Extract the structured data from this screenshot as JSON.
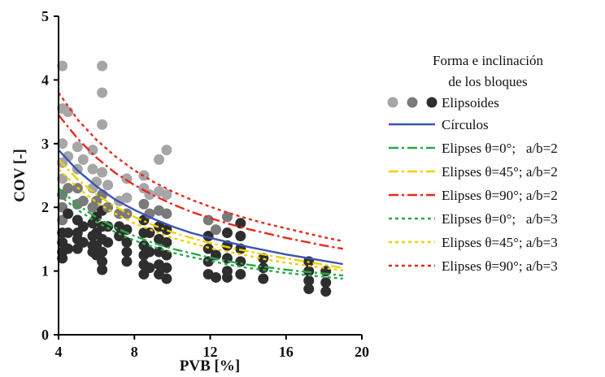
{
  "chart_data": {
    "type": "scatter",
    "xlabel": "PVB [%]",
    "ylabel": "COV [-]",
    "xlim": [
      4,
      20
    ],
    "ylim": [
      0,
      5
    ],
    "x_ticks": [
      "4",
      "8",
      "12",
      "16",
      "20"
    ],
    "y_ticks": [
      "0",
      "1",
      "2",
      "3",
      "4",
      "5"
    ],
    "grid": false,
    "legend_position": "right",
    "legend_title_lines": [
      "Forma e inclinación",
      "de los bloques"
    ],
    "scatter_series": {
      "name": "Elipsoides",
      "colors": {
        "light": "#a6a6a6",
        "mid": "#7a7a7a",
        "dark": "#2e2e2e"
      },
      "points": [
        {
          "x": 4.2,
          "y": 4.22,
          "shade": "light"
        },
        {
          "x": 4.2,
          "y": 3.55,
          "shade": "light"
        },
        {
          "x": 4.2,
          "y": 3.0,
          "shade": "light"
        },
        {
          "x": 4.2,
          "y": 2.7,
          "shade": "light"
        },
        {
          "x": 4.2,
          "y": 2.45,
          "shade": "light"
        },
        {
          "x": 4.2,
          "y": 2.2,
          "shade": "mid"
        },
        {
          "x": 4.2,
          "y": 2.0,
          "shade": "mid"
        },
        {
          "x": 4.2,
          "y": 1.8,
          "shade": "mid"
        },
        {
          "x": 4.2,
          "y": 1.6,
          "shade": "dark"
        },
        {
          "x": 4.2,
          "y": 1.45,
          "shade": "dark"
        },
        {
          "x": 4.2,
          "y": 1.3,
          "shade": "dark"
        },
        {
          "x": 4.2,
          "y": 1.2,
          "shade": "dark"
        },
        {
          "x": 4.5,
          "y": 3.5,
          "shade": "light"
        },
        {
          "x": 4.5,
          "y": 2.8,
          "shade": "light"
        },
        {
          "x": 4.5,
          "y": 2.3,
          "shade": "mid"
        },
        {
          "x": 4.5,
          "y": 1.9,
          "shade": "dark"
        },
        {
          "x": 4.5,
          "y": 1.6,
          "shade": "dark"
        },
        {
          "x": 4.5,
          "y": 1.35,
          "shade": "dark"
        },
        {
          "x": 5.0,
          "y": 2.95,
          "shade": "light"
        },
        {
          "x": 5.0,
          "y": 2.6,
          "shade": "light"
        },
        {
          "x": 5.0,
          "y": 2.3,
          "shade": "mid"
        },
        {
          "x": 5.0,
          "y": 2.05,
          "shade": "mid"
        },
        {
          "x": 5.0,
          "y": 1.8,
          "shade": "dark"
        },
        {
          "x": 5.0,
          "y": 1.6,
          "shade": "dark"
        },
        {
          "x": 5.0,
          "y": 1.5,
          "shade": "dark"
        },
        {
          "x": 5.0,
          "y": 1.35,
          "shade": "dark"
        },
        {
          "x": 5.3,
          "y": 2.75,
          "shade": "light"
        },
        {
          "x": 5.3,
          "y": 2.1,
          "shade": "mid"
        },
        {
          "x": 5.3,
          "y": 1.7,
          "shade": "dark"
        },
        {
          "x": 5.3,
          "y": 1.45,
          "shade": "dark"
        },
        {
          "x": 5.8,
          "y": 2.9,
          "shade": "light"
        },
        {
          "x": 5.8,
          "y": 2.6,
          "shade": "light"
        },
        {
          "x": 5.8,
          "y": 2.3,
          "shade": "light"
        },
        {
          "x": 5.8,
          "y": 2.0,
          "shade": "mid"
        },
        {
          "x": 5.8,
          "y": 1.75,
          "shade": "dark"
        },
        {
          "x": 5.8,
          "y": 1.55,
          "shade": "dark"
        },
        {
          "x": 5.8,
          "y": 1.4,
          "shade": "dark"
        },
        {
          "x": 5.8,
          "y": 1.3,
          "shade": "dark"
        },
        {
          "x": 6.0,
          "y": 2.4,
          "shade": "light"
        },
        {
          "x": 6.0,
          "y": 2.1,
          "shade": "mid"
        },
        {
          "x": 6.0,
          "y": 1.85,
          "shade": "dark"
        },
        {
          "x": 6.0,
          "y": 1.6,
          "shade": "dark"
        },
        {
          "x": 6.0,
          "y": 1.4,
          "shade": "dark"
        },
        {
          "x": 6.0,
          "y": 1.25,
          "shade": "dark"
        },
        {
          "x": 6.3,
          "y": 4.22,
          "shade": "light"
        },
        {
          "x": 6.3,
          "y": 3.8,
          "shade": "light"
        },
        {
          "x": 6.3,
          "y": 3.3,
          "shade": "light"
        },
        {
          "x": 6.3,
          "y": 2.55,
          "shade": "light"
        },
        {
          "x": 6.3,
          "y": 2.2,
          "shade": "mid"
        },
        {
          "x": 6.3,
          "y": 1.95,
          "shade": "dark"
        },
        {
          "x": 6.3,
          "y": 1.7,
          "shade": "dark"
        },
        {
          "x": 6.3,
          "y": 1.5,
          "shade": "dark"
        },
        {
          "x": 6.3,
          "y": 1.3,
          "shade": "dark"
        },
        {
          "x": 6.3,
          "y": 1.15,
          "shade": "dark"
        },
        {
          "x": 6.3,
          "y": 1.02,
          "shade": "dark"
        },
        {
          "x": 6.6,
          "y": 2.35,
          "shade": "light"
        },
        {
          "x": 6.6,
          "y": 2.0,
          "shade": "mid"
        },
        {
          "x": 6.6,
          "y": 1.7,
          "shade": "dark"
        },
        {
          "x": 6.6,
          "y": 1.45,
          "shade": "dark"
        },
        {
          "x": 7.2,
          "y": 2.1,
          "shade": "light"
        },
        {
          "x": 7.2,
          "y": 1.9,
          "shade": "mid"
        },
        {
          "x": 7.2,
          "y": 1.7,
          "shade": "dark"
        },
        {
          "x": 7.2,
          "y": 1.55,
          "shade": "dark"
        },
        {
          "x": 7.6,
          "y": 2.45,
          "shade": "light"
        },
        {
          "x": 7.6,
          "y": 2.15,
          "shade": "light"
        },
        {
          "x": 7.6,
          "y": 1.9,
          "shade": "mid"
        },
        {
          "x": 7.6,
          "y": 1.65,
          "shade": "dark"
        },
        {
          "x": 7.6,
          "y": 1.45,
          "shade": "dark"
        },
        {
          "x": 7.6,
          "y": 1.3,
          "shade": "dark"
        },
        {
          "x": 7.6,
          "y": 1.15,
          "shade": "dark"
        },
        {
          "x": 8.5,
          "y": 2.5,
          "shade": "light"
        },
        {
          "x": 8.5,
          "y": 2.3,
          "shade": "light"
        },
        {
          "x": 8.5,
          "y": 2.05,
          "shade": "mid"
        },
        {
          "x": 8.5,
          "y": 1.8,
          "shade": "dark"
        },
        {
          "x": 8.5,
          "y": 1.6,
          "shade": "dark"
        },
        {
          "x": 8.5,
          "y": 1.4,
          "shade": "dark"
        },
        {
          "x": 8.5,
          "y": 1.25,
          "shade": "dark"
        },
        {
          "x": 8.5,
          "y": 1.1,
          "shade": "dark"
        },
        {
          "x": 8.5,
          "y": 0.95,
          "shade": "dark"
        },
        {
          "x": 8.8,
          "y": 2.2,
          "shade": "light"
        },
        {
          "x": 8.8,
          "y": 1.9,
          "shade": "mid"
        },
        {
          "x": 8.8,
          "y": 1.6,
          "shade": "dark"
        },
        {
          "x": 8.8,
          "y": 1.3,
          "shade": "dark"
        },
        {
          "x": 8.8,
          "y": 1.05,
          "shade": "dark"
        },
        {
          "x": 9.3,
          "y": 2.75,
          "shade": "light"
        },
        {
          "x": 9.3,
          "y": 2.25,
          "shade": "light"
        },
        {
          "x": 9.3,
          "y": 1.95,
          "shade": "mid"
        },
        {
          "x": 9.3,
          "y": 1.7,
          "shade": "dark"
        },
        {
          "x": 9.3,
          "y": 1.5,
          "shade": "dark"
        },
        {
          "x": 9.3,
          "y": 1.3,
          "shade": "dark"
        },
        {
          "x": 9.3,
          "y": 1.1,
          "shade": "dark"
        },
        {
          "x": 9.3,
          "y": 0.95,
          "shade": "dark"
        },
        {
          "x": 9.7,
          "y": 2.9,
          "shade": "light"
        },
        {
          "x": 9.7,
          "y": 2.2,
          "shade": "light"
        },
        {
          "x": 9.7,
          "y": 1.9,
          "shade": "mid"
        },
        {
          "x": 9.7,
          "y": 1.65,
          "shade": "dark"
        },
        {
          "x": 9.7,
          "y": 1.45,
          "shade": "dark"
        },
        {
          "x": 9.7,
          "y": 1.25,
          "shade": "dark"
        },
        {
          "x": 9.7,
          "y": 1.05,
          "shade": "dark"
        },
        {
          "x": 9.7,
          "y": 0.88,
          "shade": "dark"
        },
        {
          "x": 11.9,
          "y": 1.8,
          "shade": "mid"
        },
        {
          "x": 11.9,
          "y": 1.55,
          "shade": "dark"
        },
        {
          "x": 11.9,
          "y": 1.35,
          "shade": "dark"
        },
        {
          "x": 11.9,
          "y": 1.15,
          "shade": "dark"
        },
        {
          "x": 11.9,
          "y": 0.95,
          "shade": "dark"
        },
        {
          "x": 12.3,
          "y": 1.65,
          "shade": "mid"
        },
        {
          "x": 12.3,
          "y": 1.25,
          "shade": "dark"
        },
        {
          "x": 12.3,
          "y": 0.9,
          "shade": "dark"
        },
        {
          "x": 12.9,
          "y": 1.85,
          "shade": "mid"
        },
        {
          "x": 12.9,
          "y": 1.6,
          "shade": "dark"
        },
        {
          "x": 12.9,
          "y": 1.4,
          "shade": "dark"
        },
        {
          "x": 12.9,
          "y": 1.2,
          "shade": "dark"
        },
        {
          "x": 12.9,
          "y": 1.0,
          "shade": "dark"
        },
        {
          "x": 12.9,
          "y": 0.9,
          "shade": "dark"
        },
        {
          "x": 13.6,
          "y": 1.75,
          "shade": "dark"
        },
        {
          "x": 13.6,
          "y": 1.55,
          "shade": "dark"
        },
        {
          "x": 13.6,
          "y": 1.35,
          "shade": "dark"
        },
        {
          "x": 13.6,
          "y": 1.15,
          "shade": "dark"
        },
        {
          "x": 13.6,
          "y": 0.95,
          "shade": "dark"
        },
        {
          "x": 14.8,
          "y": 1.2,
          "shade": "dark"
        },
        {
          "x": 14.8,
          "y": 1.05,
          "shade": "dark"
        },
        {
          "x": 14.8,
          "y": 0.88,
          "shade": "dark"
        },
        {
          "x": 17.2,
          "y": 1.15,
          "shade": "dark"
        },
        {
          "x": 17.2,
          "y": 1.0,
          "shade": "dark"
        },
        {
          "x": 17.2,
          "y": 0.85,
          "shade": "dark"
        },
        {
          "x": 17.2,
          "y": 0.72,
          "shade": "dark"
        },
        {
          "x": 18.1,
          "y": 1.0,
          "shade": "dark"
        },
        {
          "x": 18.1,
          "y": 0.82,
          "shade": "dark"
        },
        {
          "x": 18.1,
          "y": 0.68,
          "shade": "dark"
        }
      ]
    },
    "series": [
      {
        "name": "Círculos",
        "color": "#3a55b4",
        "dash": "solid",
        "x": [
          4,
          5,
          6,
          7,
          8,
          9,
          10,
          11,
          12,
          13,
          14,
          15,
          16,
          17,
          18,
          19
        ],
        "y": [
          2.9,
          2.58,
          2.33,
          2.12,
          1.96,
          1.82,
          1.7,
          1.6,
          1.52,
          1.45,
          1.38,
          1.32,
          1.26,
          1.21,
          1.16,
          1.11
        ]
      },
      {
        "name": "Elipses θ=0°;   a/b=2",
        "color": "#2aa84a",
        "dash": "dashdot",
        "x": [
          4,
          5,
          6,
          7,
          8,
          9,
          10,
          11,
          12,
          13,
          14,
          15,
          16,
          17,
          18,
          19
        ],
        "y": [
          2.3,
          2.04,
          1.84,
          1.68,
          1.55,
          1.44,
          1.35,
          1.28,
          1.21,
          1.15,
          1.1,
          1.06,
          1.02,
          0.99,
          0.96,
          0.93
        ]
      },
      {
        "name": "Elipses θ=45°; a/b=2",
        "color": "#f0d000",
        "dash": "dashdot",
        "x": [
          4,
          5,
          6,
          7,
          8,
          9,
          10,
          11,
          12,
          13,
          14,
          15,
          16,
          17,
          18,
          19
        ],
        "y": [
          2.75,
          2.44,
          2.2,
          2.01,
          1.85,
          1.72,
          1.61,
          1.52,
          1.44,
          1.37,
          1.31,
          1.25,
          1.2,
          1.15,
          1.1,
          1.05
        ]
      },
      {
        "name": "Elipses θ=90°; a/b=2",
        "color": "#e8281c",
        "dash": "dashdot",
        "x": [
          4,
          5,
          6,
          7,
          8,
          9,
          10,
          11,
          12,
          13,
          14,
          15,
          16,
          17,
          18,
          19
        ],
        "y": [
          3.45,
          3.08,
          2.78,
          2.54,
          2.35,
          2.19,
          2.05,
          1.93,
          1.83,
          1.74,
          1.66,
          1.59,
          1.52,
          1.46,
          1.4,
          1.35
        ]
      },
      {
        "name": "Elipses θ=0°;   a/b=3",
        "color": "#2aa84a",
        "dash": "dotted",
        "x": [
          4,
          5,
          6,
          7,
          8,
          9,
          10,
          11,
          12,
          13,
          14,
          15,
          16,
          17,
          18,
          19
        ],
        "y": [
          2.2,
          1.96,
          1.77,
          1.61,
          1.48,
          1.38,
          1.29,
          1.22,
          1.16,
          1.1,
          1.05,
          1.01,
          0.97,
          0.94,
          0.91,
          0.88
        ]
      },
      {
        "name": "Elipses θ=45°; a/b=3",
        "color": "#f0d000",
        "dash": "dotted",
        "x": [
          4,
          5,
          6,
          7,
          8,
          9,
          10,
          11,
          12,
          13,
          14,
          15,
          16,
          17,
          18,
          19
        ],
        "y": [
          2.6,
          2.31,
          2.08,
          1.9,
          1.75,
          1.63,
          1.52,
          1.44,
          1.36,
          1.3,
          1.24,
          1.18,
          1.13,
          1.09,
          1.05,
          1.01
        ]
      },
      {
        "name": "Elipses θ=90°; a/b=3",
        "color": "#e8281c",
        "dash": "dotted",
        "x": [
          4,
          5,
          6,
          7,
          8,
          9,
          10,
          11,
          12,
          13,
          14,
          15,
          16,
          17,
          18,
          19
        ],
        "y": [
          3.8,
          3.38,
          3.06,
          2.8,
          2.58,
          2.4,
          2.25,
          2.12,
          2.01,
          1.91,
          1.82,
          1.74,
          1.67,
          1.6,
          1.53,
          1.47
        ]
      }
    ]
  }
}
